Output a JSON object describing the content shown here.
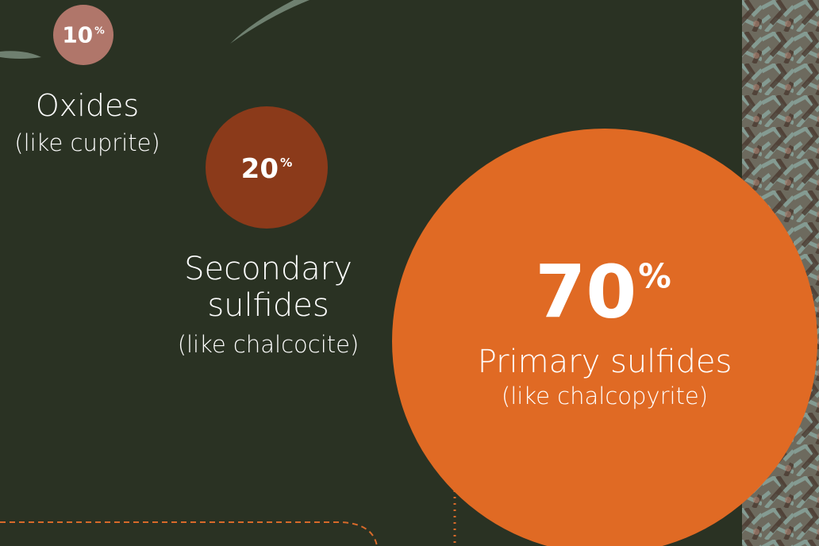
{
  "items": [
    {
      "percent": "10",
      "unit": "%",
      "name": "Oxides",
      "example": "(like cuprite)"
    },
    {
      "percent": "20",
      "unit": "%",
      "name": "Secondary sulfides",
      "example": "(like chalcocite)"
    },
    {
      "percent": "70",
      "unit": "%",
      "name": "Primary sulfides",
      "example": "(like chalcopyrite)"
    }
  ]
}
